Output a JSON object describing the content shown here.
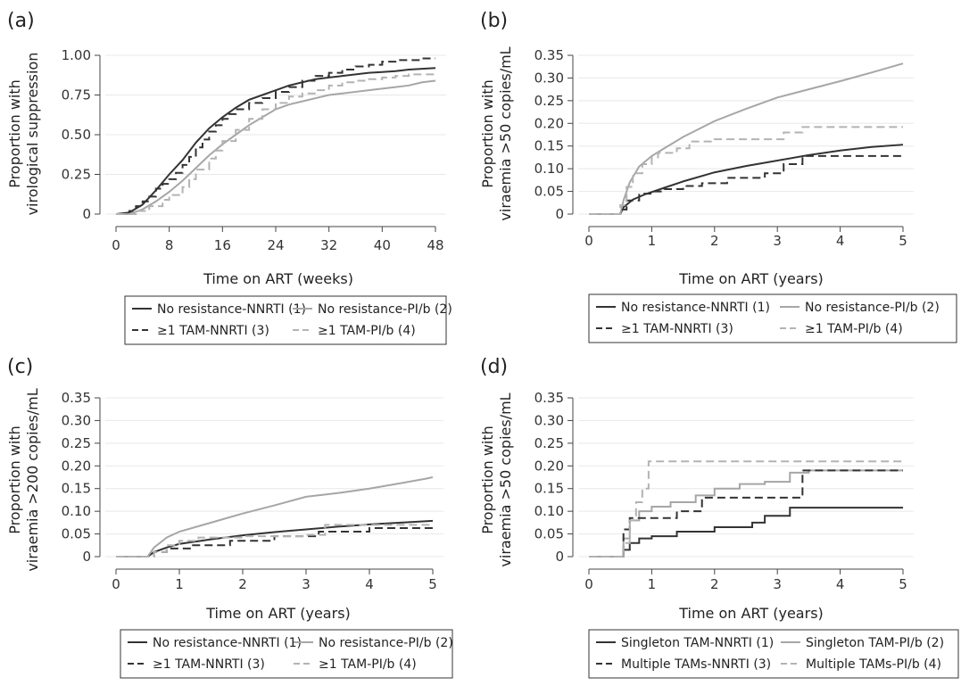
{
  "chart_data": [
    {
      "type": "line",
      "panel_label": "(a)",
      "ylabel_lines": [
        "Proportion with",
        "virological suppression"
      ],
      "xlabel": "Time on ART (weeks)",
      "xlim": [
        0,
        48
      ],
      "ylim": [
        0,
        1
      ],
      "x_ticks": [
        0,
        8,
        16,
        24,
        32,
        40,
        48
      ],
      "x_tick_labels": [
        "0",
        "8",
        "16",
        "24",
        "32",
        "40",
        "48"
      ],
      "y_ticks": [
        0,
        0.25,
        0.5,
        0.75,
        1.0
      ],
      "y_tick_labels": [
        "0",
        "0.25",
        "0.50",
        "0.75",
        "1.00"
      ],
      "grid": true,
      "legend_position": "bottom",
      "series": [
        {
          "name": "No resistance-NNRTI (1)",
          "color": "#333333",
          "dash": "solid",
          "step": false,
          "x": [
            0,
            2,
            4,
            6,
            8,
            10,
            12,
            14,
            16,
            18,
            20,
            22,
            24,
            26,
            28,
            30,
            32,
            34,
            36,
            38,
            40,
            42,
            44,
            46,
            48
          ],
          "y": [
            0,
            0.01,
            0.06,
            0.15,
            0.25,
            0.34,
            0.45,
            0.54,
            0.61,
            0.67,
            0.72,
            0.75,
            0.78,
            0.81,
            0.83,
            0.85,
            0.86,
            0.87,
            0.88,
            0.89,
            0.895,
            0.9,
            0.91,
            0.915,
            0.92
          ]
        },
        {
          "name": "No resistance-PI/b (2)",
          "color": "#a6a6a6",
          "dash": "solid",
          "step": false,
          "x": [
            0,
            2,
            4,
            6,
            8,
            10,
            12,
            14,
            16,
            18,
            20,
            22,
            24,
            26,
            28,
            30,
            32,
            34,
            36,
            38,
            40,
            42,
            44,
            46,
            48
          ],
          "y": [
            0,
            0,
            0.03,
            0.08,
            0.14,
            0.21,
            0.29,
            0.37,
            0.44,
            0.5,
            0.56,
            0.61,
            0.66,
            0.69,
            0.71,
            0.73,
            0.75,
            0.76,
            0.77,
            0.78,
            0.79,
            0.8,
            0.81,
            0.83,
            0.84
          ]
        },
        {
          "name": "≥1 TAM-NNRTI (3)",
          "color": "#333333",
          "dash": "9,5",
          "step": true,
          "x": [
            0,
            2,
            3,
            4,
            5,
            6,
            7,
            8,
            9,
            10,
            11,
            12,
            13,
            14,
            15,
            16,
            17,
            18,
            20,
            22,
            24,
            26,
            28,
            30,
            32,
            34,
            36,
            38,
            40,
            42,
            44,
            46,
            48
          ],
          "y": [
            0,
            0.02,
            0.05,
            0.08,
            0.11,
            0.16,
            0.19,
            0.22,
            0.26,
            0.31,
            0.36,
            0.42,
            0.47,
            0.52,
            0.56,
            0.6,
            0.63,
            0.66,
            0.7,
            0.73,
            0.77,
            0.8,
            0.84,
            0.87,
            0.89,
            0.91,
            0.93,
            0.94,
            0.96,
            0.97,
            0.97,
            0.98,
            0.98
          ]
        },
        {
          "name": "≥1 TAM-PI/b (4)",
          "color": "#b3b3b3",
          "dash": "9,5",
          "step": true,
          "x": [
            0,
            3,
            5,
            7,
            8,
            10,
            11,
            12,
            14,
            15,
            16,
            18,
            20,
            22,
            24,
            26,
            28,
            30,
            32,
            34,
            36,
            38,
            40,
            42,
            44,
            46,
            48
          ],
          "y": [
            0,
            0.02,
            0.05,
            0.09,
            0.12,
            0.17,
            0.22,
            0.28,
            0.35,
            0.4,
            0.46,
            0.53,
            0.6,
            0.66,
            0.7,
            0.74,
            0.76,
            0.78,
            0.81,
            0.83,
            0.84,
            0.85,
            0.86,
            0.87,
            0.88,
            0.88,
            0.89
          ]
        }
      ]
    },
    {
      "type": "line",
      "panel_label": "(b)",
      "ylabel_lines": [
        "Proportion with",
        "viraemia >50 copies/mL"
      ],
      "xlabel": "Time on ART (years)",
      "xlim": [
        0,
        5
      ],
      "ylim": [
        0,
        0.35
      ],
      "x_ticks": [
        0,
        1,
        2,
        3,
        4,
        5
      ],
      "x_tick_labels": [
        "0",
        "1",
        "2",
        "3",
        "4",
        "5"
      ],
      "y_ticks": [
        0,
        0.05,
        0.1,
        0.15,
        0.2,
        0.25,
        0.3,
        0.35
      ],
      "y_tick_labels": [
        "0",
        "0.05",
        "0.10",
        "0.15",
        "0.20",
        "0.25",
        "0.30",
        "0.35"
      ],
      "grid": true,
      "legend_position": "bottom",
      "series": [
        {
          "name": "No resistance-NNRTI (1)",
          "color": "#333333",
          "dash": "solid",
          "step": false,
          "x": [
            0,
            0.5,
            0.55,
            0.7,
            0.9,
            1.2,
            1.5,
            2,
            2.5,
            3,
            3.5,
            4,
            4.5,
            5
          ],
          "y": [
            0,
            0,
            0.015,
            0.032,
            0.044,
            0.058,
            0.072,
            0.092,
            0.106,
            0.118,
            0.13,
            0.14,
            0.148,
            0.153
          ]
        },
        {
          "name": "No resistance-PI/b (2)",
          "color": "#a6a6a6",
          "dash": "solid",
          "step": false,
          "x": [
            0,
            0.5,
            0.55,
            0.65,
            0.8,
            1.0,
            1.2,
            1.5,
            2,
            2.5,
            3,
            3.5,
            4,
            4.5,
            5
          ],
          "y": [
            0,
            0,
            0.03,
            0.07,
            0.105,
            0.128,
            0.145,
            0.17,
            0.205,
            0.232,
            0.257,
            0.275,
            0.293,
            0.312,
            0.332
          ]
        },
        {
          "name": "≥1 TAM-NNRTI (3)",
          "color": "#333333",
          "dash": "9,5",
          "step": true,
          "x": [
            0,
            0.5,
            0.6,
            0.8,
            1.0,
            1.2,
            1.5,
            1.8,
            2.2,
            2.8,
            3.1,
            3.4,
            3.8,
            5
          ],
          "y": [
            0,
            0.01,
            0.03,
            0.045,
            0.05,
            0.055,
            0.062,
            0.068,
            0.08,
            0.09,
            0.11,
            0.128,
            0.128,
            0.128
          ]
        },
        {
          "name": "≥1 TAM-PI/b (4)",
          "color": "#b3b3b3",
          "dash": "9,5",
          "step": true,
          "x": [
            0,
            0.5,
            0.6,
            0.7,
            0.85,
            1.0,
            1.1,
            1.4,
            1.6,
            2.0,
            2.6,
            3.1,
            3.4,
            3.8,
            5
          ],
          "y": [
            0,
            0.02,
            0.06,
            0.09,
            0.11,
            0.125,
            0.135,
            0.145,
            0.16,
            0.165,
            0.165,
            0.18,
            0.192,
            0.192,
            0.192
          ]
        }
      ]
    },
    {
      "type": "line",
      "panel_label": "(c)",
      "ylabel_lines": [
        "Proportion with",
        "viraemia >200 copies/mL"
      ],
      "xlabel": "Time on ART (years)",
      "xlim": [
        0,
        5
      ],
      "ylim": [
        0,
        0.35
      ],
      "x_ticks": [
        0,
        1,
        2,
        3,
        4,
        5
      ],
      "x_tick_labels": [
        "0",
        "1",
        "2",
        "3",
        "4",
        "5"
      ],
      "y_ticks": [
        0,
        0.05,
        0.1,
        0.15,
        0.2,
        0.25,
        0.3,
        0.35
      ],
      "y_tick_labels": [
        "0",
        "0.05",
        "0.10",
        "0.15",
        "0.20",
        "0.25",
        "0.30",
        "0.35"
      ],
      "grid": true,
      "legend_position": "bottom",
      "series": [
        {
          "name": "No resistance-NNRTI (1)",
          "color": "#333333",
          "dash": "solid",
          "step": false,
          "x": [
            0,
            0.5,
            0.6,
            0.8,
            1,
            1.5,
            2,
            2.5,
            3,
            3.5,
            4,
            4.5,
            5
          ],
          "y": [
            0,
            0,
            0.01,
            0.02,
            0.028,
            0.038,
            0.047,
            0.054,
            0.06,
            0.066,
            0.071,
            0.075,
            0.079
          ]
        },
        {
          "name": "No resistance-PI/b (2)",
          "color": "#a6a6a6",
          "dash": "solid",
          "step": false,
          "x": [
            0,
            0.5,
            0.6,
            0.8,
            1.0,
            1.5,
            2,
            2.5,
            3,
            3.5,
            4,
            4.5,
            4.9,
            5
          ],
          "y": [
            0,
            0,
            0.02,
            0.042,
            0.055,
            0.075,
            0.095,
            0.113,
            0.132,
            0.14,
            0.15,
            0.162,
            0.172,
            0.175
          ]
        },
        {
          "name": "≥1 TAM-NNRTI (3)",
          "color": "#333333",
          "dash": "9,5",
          "step": true,
          "x": [
            0,
            0.6,
            0.8,
            1.2,
            1.8,
            2.5,
            3.2,
            4.0,
            5
          ],
          "y": [
            0,
            0.01,
            0.018,
            0.025,
            0.035,
            0.045,
            0.055,
            0.063,
            0.065
          ]
        },
        {
          "name": "≥1 TAM-PI/b (4)",
          "color": "#b3b3b3",
          "dash": "9,5",
          "step": true,
          "x": [
            0,
            0.6,
            0.8,
            1.0,
            1.3,
            2.0,
            2.5,
            3.0,
            3.3,
            5
          ],
          "y": [
            0,
            0.01,
            0.025,
            0.035,
            0.042,
            0.045,
            0.045,
            0.048,
            0.07,
            0.07
          ]
        }
      ]
    },
    {
      "type": "line",
      "panel_label": "(d)",
      "ylabel_lines": [
        "Proportion with",
        "viraemia >50 copies/mL"
      ],
      "xlabel": "Time on ART (years)",
      "xlim": [
        0,
        5
      ],
      "ylim": [
        0,
        0.35
      ],
      "x_ticks": [
        0,
        1,
        2,
        3,
        4,
        5
      ],
      "x_tick_labels": [
        "0",
        "1",
        "2",
        "3",
        "4",
        "5"
      ],
      "y_ticks": [
        0,
        0.05,
        0.1,
        0.15,
        0.2,
        0.25,
        0.3,
        0.35
      ],
      "y_tick_labels": [
        "0",
        "0.05",
        "0.10",
        "0.15",
        "0.20",
        "0.25",
        "0.30",
        "0.35"
      ],
      "grid": true,
      "legend_position": "bottom",
      "series": [
        {
          "name": "Singleton TAM-NNRTI (1)",
          "color": "#333333",
          "dash": "solid",
          "step": true,
          "x": [
            0,
            0.55,
            0.65,
            0.8,
            1.0,
            1.4,
            2.0,
            2.6,
            2.8,
            3.2,
            5
          ],
          "y": [
            0,
            0.015,
            0.03,
            0.04,
            0.045,
            0.055,
            0.065,
            0.075,
            0.09,
            0.108,
            0.108
          ]
        },
        {
          "name": "Singleton TAM-PI/b (2)",
          "color": "#a6a6a6",
          "dash": "solid",
          "step": true,
          "x": [
            0,
            0.55,
            0.65,
            0.8,
            1.0,
            1.3,
            1.7,
            2.0,
            2.4,
            2.8,
            3.2,
            3.5,
            5
          ],
          "y": [
            0,
            0.04,
            0.08,
            0.1,
            0.11,
            0.12,
            0.135,
            0.15,
            0.16,
            0.165,
            0.185,
            0.19,
            0.19
          ]
        },
        {
          "name": "Multiple TAMs-NNRTI (3)",
          "color": "#333333",
          "dash": "9,5",
          "step": true,
          "x": [
            0,
            0.55,
            0.65,
            1.0,
            1.4,
            1.8,
            3.1,
            3.4,
            5
          ],
          "y": [
            0,
            0.06,
            0.085,
            0.085,
            0.1,
            0.13,
            0.13,
            0.19,
            0.19
          ]
        },
        {
          "name": "Multiple TAMs-PI/b (4)",
          "color": "#b3b3b3",
          "dash": "9,5",
          "step": true,
          "x": [
            0,
            0.55,
            0.65,
            0.75,
            0.85,
            0.95,
            5
          ],
          "y": [
            0,
            0.03,
            0.08,
            0.12,
            0.15,
            0.21,
            0.21
          ]
        }
      ]
    }
  ]
}
